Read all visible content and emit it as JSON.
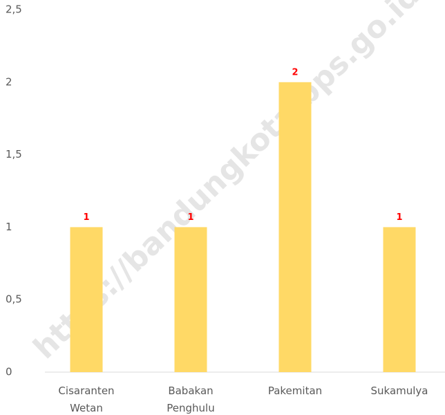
{
  "chart_data": {
    "type": "bar",
    "categories": [
      "Cisaranten Wetan",
      "Babakan Penghulu",
      "Pakemitan",
      "Sukamulya"
    ],
    "values": [
      1,
      1,
      2,
      1
    ],
    "color": "#ffd966",
    "ylim": [
      0,
      2.5
    ],
    "yticks": [
      0,
      {
        "value": 0.5,
        "label": "0,5"
      },
      1,
      {
        "value": 1.5,
        "label": "1,5"
      },
      2,
      {
        "value": 2.5,
        "label": "2,5"
      }
    ],
    "grid": false,
    "watermark": "https://bandungkota.bps.go.id"
  }
}
